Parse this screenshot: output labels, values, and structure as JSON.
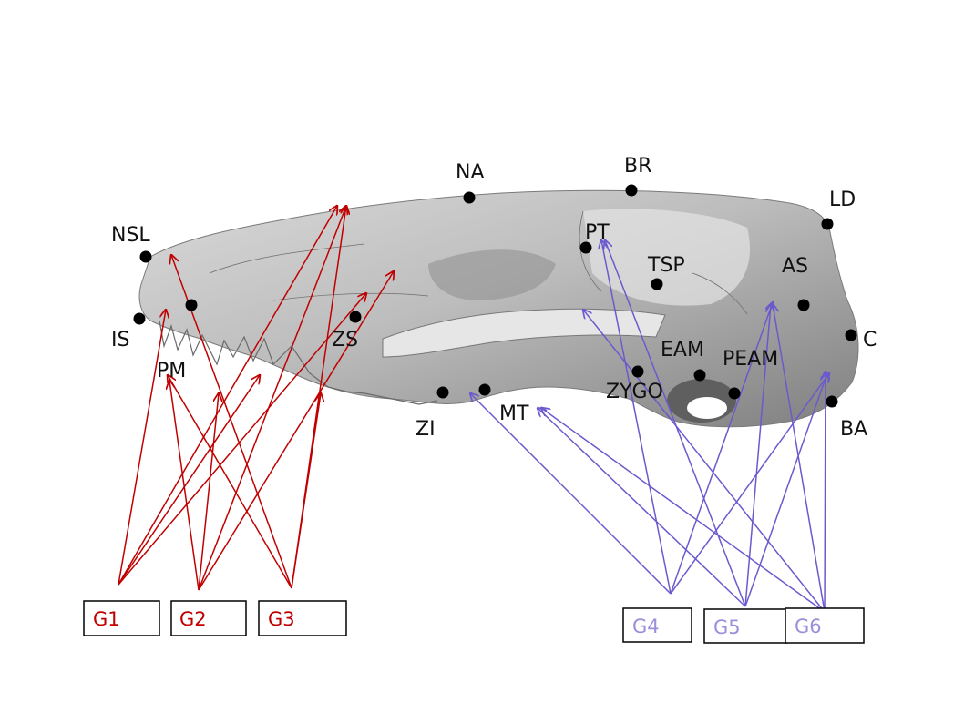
{
  "landmarks": [
    {
      "code": "NSL"
    },
    {
      "code": "IS"
    },
    {
      "code": "PM"
    },
    {
      "code": "ZS"
    },
    {
      "code": "NA"
    },
    {
      "code": "BR"
    },
    {
      "code": "PT"
    },
    {
      "code": "TSP"
    },
    {
      "code": "LD"
    },
    {
      "code": "AS"
    },
    {
      "code": "C"
    },
    {
      "code": "EAM"
    },
    {
      "code": "PEAM"
    },
    {
      "code": "ZYGO"
    },
    {
      "code": "ZI"
    },
    {
      "code": "MT"
    },
    {
      "code": "BA"
    }
  ],
  "groups": [
    {
      "label": "G1"
    },
    {
      "label": "G2"
    },
    {
      "label": "G3"
    },
    {
      "label": "G4"
    },
    {
      "label": "G5"
    },
    {
      "label": "G6"
    }
  ],
  "colors": {
    "left_groups": "#c00000",
    "right_groups_line": "#6a5acd",
    "right_groups_text": "#9a8fd8",
    "landmark_dot": "#000000",
    "skull_fill": "#a8a8a8"
  }
}
